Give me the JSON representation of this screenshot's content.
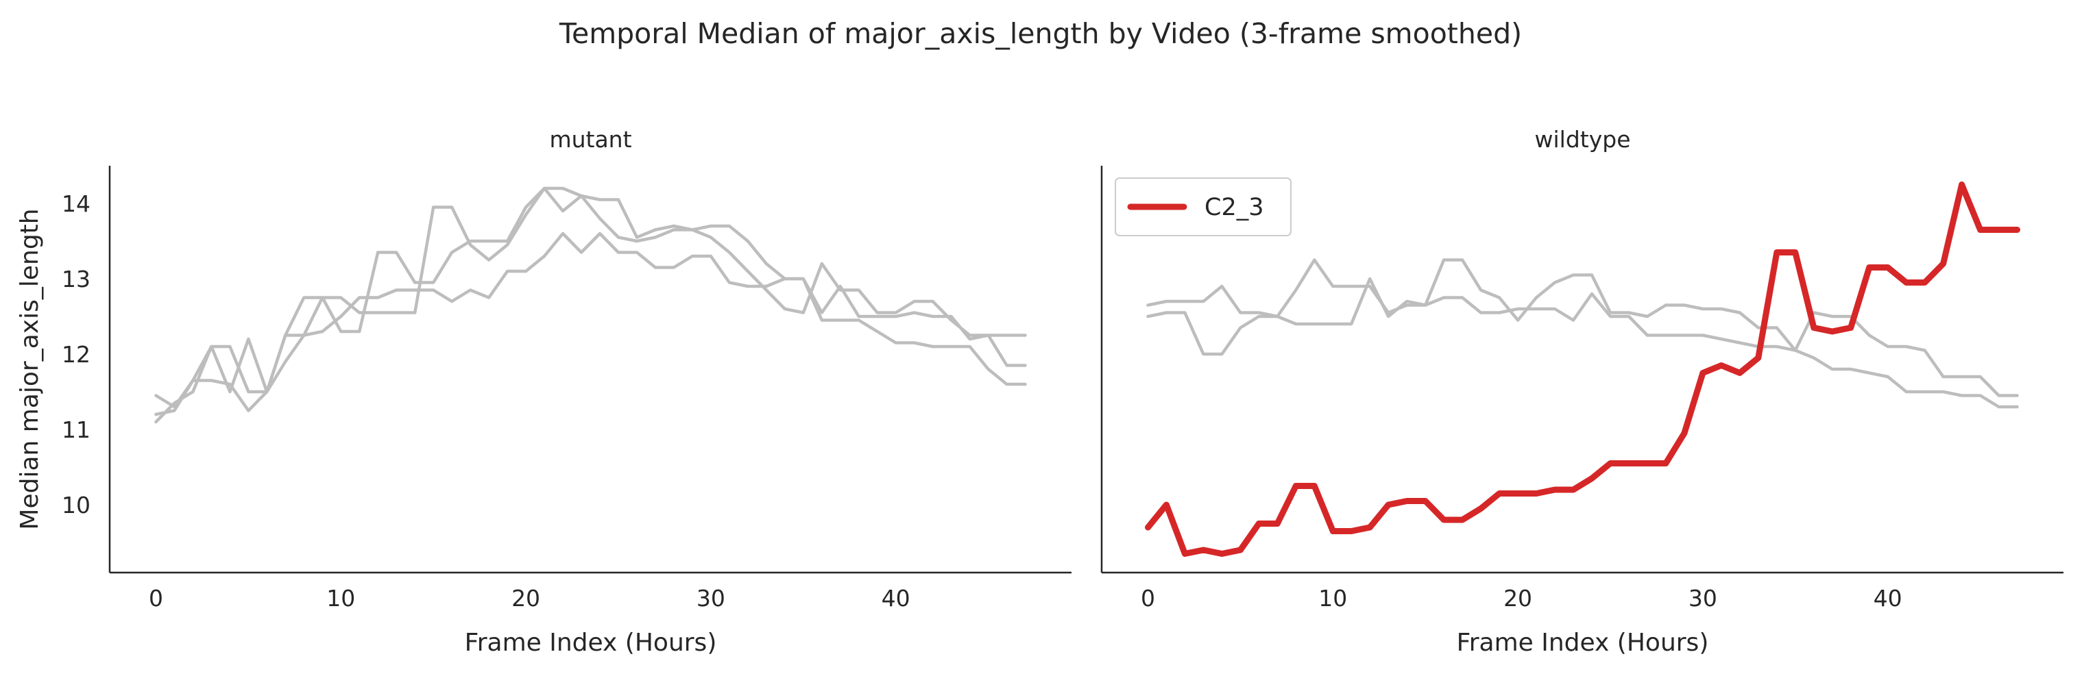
{
  "figure": {
    "title": "Temporal Median of major_axis_length by Video (3-frame smoothed)"
  },
  "chart_data": [
    {
      "type": "line",
      "panel_title": "mutant",
      "xlabel": "Frame Index (Hours)",
      "ylabel": "Median major_axis_length",
      "xlim": [
        -2.5,
        49.5
      ],
      "ylim": [
        9.1,
        14.5
      ],
      "xticks": [
        0,
        10,
        20,
        30,
        40
      ],
      "yticks": [
        10,
        11,
        12,
        13,
        14
      ],
      "grid": false,
      "series": [
        {
          "color": "#bdbdbd",
          "x": [
            0,
            1,
            2,
            3,
            4,
            5,
            6,
            7,
            8,
            9,
            10,
            11,
            12,
            13,
            14,
            15,
            16,
            17,
            18,
            19,
            20,
            21,
            22,
            23,
            24,
            25,
            26,
            27,
            28,
            29,
            30,
            31,
            32,
            33,
            34,
            35,
            36,
            37,
            38,
            39,
            40,
            41,
            42,
            43,
            44,
            45,
            46,
            47
          ],
          "values": [
            11.45,
            11.3,
            11.65,
            12.1,
            12.1,
            11.5,
            11.5,
            12.25,
            12.25,
            12.75,
            12.75,
            12.55,
            12.55,
            12.55,
            12.55,
            13.95,
            13.95,
            13.45,
            13.25,
            13.45,
            13.85,
            14.2,
            14.2,
            14.1,
            14.05,
            14.05,
            13.55,
            13.65,
            13.7,
            13.65,
            13.55,
            13.35,
            13.1,
            12.85,
            12.6,
            12.55,
            13.2,
            12.85,
            12.85,
            12.55,
            12.55,
            12.7,
            12.7,
            12.45,
            12.25,
            12.25,
            12.25,
            12.25
          ]
        },
        {
          "color": "#bdbdbd",
          "x": [
            0,
            1,
            2,
            3,
            4,
            5,
            6,
            7,
            8,
            9,
            10,
            11,
            12,
            13,
            14,
            15,
            16,
            17,
            18,
            19,
            20,
            21,
            22,
            23,
            24,
            25,
            26,
            27,
            28,
            29,
            30,
            31,
            32,
            33,
            34,
            35,
            36,
            37,
            38,
            39,
            40,
            41,
            42,
            43,
            44,
            45,
            46,
            47
          ],
          "values": [
            11.2,
            11.25,
            11.65,
            11.65,
            11.6,
            11.25,
            11.5,
            12.25,
            12.75,
            12.75,
            12.3,
            12.3,
            13.35,
            13.35,
            12.95,
            12.95,
            13.35,
            13.5,
            13.5,
            13.5,
            13.95,
            14.2,
            13.9,
            14.1,
            13.8,
            13.55,
            13.5,
            13.55,
            13.65,
            13.65,
            13.7,
            13.7,
            13.5,
            13.2,
            13.0,
            13.0,
            12.55,
            12.9,
            12.5,
            12.5,
            12.5,
            12.55,
            12.5,
            12.5,
            12.2,
            12.25,
            11.85,
            11.85
          ]
        },
        {
          "color": "#bdbdbd",
          "x": [
            0,
            1,
            2,
            3,
            4,
            5,
            6,
            7,
            8,
            9,
            10,
            11,
            12,
            13,
            14,
            15,
            16,
            17,
            18,
            19,
            20,
            21,
            22,
            23,
            24,
            25,
            26,
            27,
            28,
            29,
            30,
            31,
            32,
            33,
            34,
            35,
            36,
            37,
            38,
            39,
            40,
            41,
            42,
            43,
            44,
            45,
            46,
            47
          ],
          "values": [
            11.1,
            11.35,
            11.5,
            12.1,
            11.5,
            12.2,
            11.5,
            11.9,
            12.25,
            12.3,
            12.5,
            12.75,
            12.75,
            12.85,
            12.85,
            12.85,
            12.7,
            12.85,
            12.75,
            13.1,
            13.1,
            13.3,
            13.6,
            13.35,
            13.6,
            13.35,
            13.35,
            13.15,
            13.15,
            13.3,
            13.3,
            12.95,
            12.9,
            12.9,
            13.0,
            13.0,
            12.45,
            12.45,
            12.45,
            12.3,
            12.15,
            12.15,
            12.1,
            12.1,
            12.1,
            11.8,
            11.6,
            11.6
          ]
        }
      ]
    },
    {
      "type": "line",
      "panel_title": "wildtype",
      "xlabel": "Frame Index (Hours)",
      "ylabel": "",
      "xlim": [
        -2.5,
        49.5
      ],
      "ylim": [
        9.1,
        14.5
      ],
      "xticks": [
        0,
        10,
        20,
        30,
        40
      ],
      "yticks": [
        10,
        11,
        12,
        13,
        14
      ],
      "grid": false,
      "legend": {
        "placement": "top-left",
        "entries": [
          {
            "label": "C2_3",
            "color": "#d62728"
          }
        ]
      },
      "series": [
        {
          "color": "#bdbdbd",
          "x": [
            0,
            1,
            2,
            3,
            4,
            5,
            6,
            7,
            8,
            9,
            10,
            11,
            12,
            13,
            14,
            15,
            16,
            17,
            18,
            19,
            20,
            21,
            22,
            23,
            24,
            25,
            26,
            27,
            28,
            29,
            30,
            31,
            32,
            33,
            34,
            35,
            36,
            37,
            38,
            39,
            40,
            41,
            42,
            43,
            44,
            45,
            46,
            47
          ],
          "values": [
            12.65,
            12.7,
            12.7,
            12.7,
            12.9,
            12.55,
            12.55,
            12.5,
            12.85,
            13.25,
            12.9,
            12.9,
            12.9,
            12.55,
            12.65,
            12.65,
            13.25,
            13.25,
            12.85,
            12.75,
            12.45,
            12.75,
            12.95,
            13.05,
            13.05,
            12.55,
            12.55,
            12.5,
            12.65,
            12.65,
            12.6,
            12.6,
            12.55,
            12.35,
            12.35,
            12.05,
            12.55,
            12.5,
            12.5,
            12.25,
            12.1,
            12.1,
            12.05,
            11.7,
            11.7,
            11.7,
            11.45,
            11.45
          ]
        },
        {
          "color": "#bdbdbd",
          "x": [
            0,
            1,
            2,
            3,
            4,
            5,
            6,
            7,
            8,
            9,
            10,
            11,
            12,
            13,
            14,
            15,
            16,
            17,
            18,
            19,
            20,
            21,
            22,
            23,
            24,
            25,
            26,
            27,
            28,
            29,
            30,
            31,
            32,
            33,
            34,
            35,
            36,
            37,
            38,
            39,
            40,
            41,
            42,
            43,
            44,
            45,
            46,
            47
          ],
          "values": [
            12.5,
            12.55,
            12.55,
            12.0,
            12.0,
            12.35,
            12.5,
            12.5,
            12.4,
            12.4,
            12.4,
            12.4,
            13.0,
            12.5,
            12.7,
            12.65,
            12.75,
            12.75,
            12.55,
            12.55,
            12.6,
            12.6,
            12.6,
            12.45,
            12.8,
            12.5,
            12.5,
            12.25,
            12.25,
            12.25,
            12.25,
            12.2,
            12.15,
            12.1,
            12.1,
            12.05,
            11.95,
            11.8,
            11.8,
            11.75,
            11.7,
            11.5,
            11.5,
            11.5,
            11.45,
            11.45,
            11.3,
            11.3
          ]
        },
        {
          "name": "C2_3",
          "color": "#d62728",
          "highlight": true,
          "x": [
            0,
            1,
            2,
            3,
            4,
            5,
            6,
            7,
            8,
            9,
            10,
            11,
            12,
            13,
            14,
            15,
            16,
            17,
            18,
            19,
            20,
            21,
            22,
            23,
            24,
            25,
            26,
            27,
            28,
            29,
            30,
            31,
            32,
            33,
            34,
            35,
            36,
            37,
            38,
            39,
            40,
            41,
            42,
            43,
            44,
            45,
            46,
            47
          ],
          "values": [
            9.7,
            10.0,
            9.35,
            9.4,
            9.35,
            9.4,
            9.75,
            9.75,
            10.25,
            10.25,
            9.65,
            9.65,
            9.7,
            10.0,
            10.05,
            10.05,
            9.8,
            9.8,
            9.95,
            10.15,
            10.15,
            10.15,
            10.2,
            10.2,
            10.35,
            10.55,
            10.55,
            10.55,
            10.55,
            10.95,
            11.75,
            11.85,
            11.75,
            11.95,
            13.35,
            13.35,
            12.35,
            12.3,
            12.35,
            13.15,
            13.15,
            12.95,
            12.95,
            13.2,
            14.25,
            13.65,
            13.65,
            13.65
          ]
        }
      ]
    }
  ]
}
